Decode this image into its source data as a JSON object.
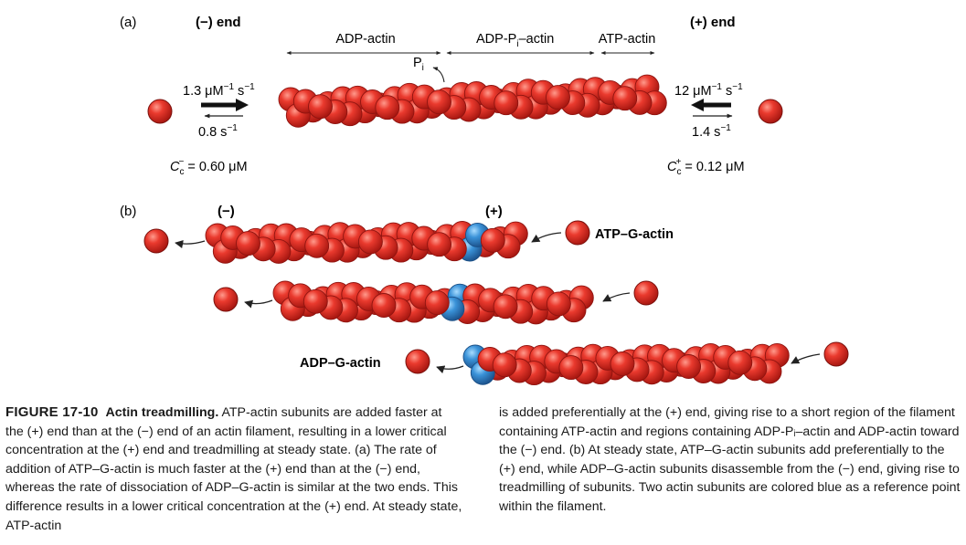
{
  "panel_a": {
    "label": "(a)",
    "minus_end": "(−) end",
    "plus_end": "(+) end",
    "region_adp": "ADP-actin",
    "region_adp_pi_main": "ADP-P",
    "region_adp_pi_sub": "i",
    "region_adp_pi_tail": "–actin",
    "region_atp": "ATP-actin",
    "pi_main": "P",
    "pi_sub": "i",
    "minus_on_rate_main": "1.3 μM",
    "minus_on_rate_exp1": "−1",
    "minus_on_rate_mid": " s",
    "minus_on_rate_exp2": "−1",
    "minus_off_rate_main": "0.8 s",
    "minus_off_rate_exp": "−1",
    "plus_on_rate_main": "12 μM",
    "plus_on_rate_exp1": "−1",
    "plus_on_rate_mid": " s",
    "plus_on_rate_exp2": "−1",
    "plus_off_rate_main": "1.4 s",
    "plus_off_rate_exp": "−1",
    "cc_minus_letter": "C",
    "cc_minus_sub": "c",
    "cc_minus_sup": "−",
    "cc_minus_value": " = 0.60 μM",
    "cc_plus_letter": "C",
    "cc_plus_sub": "c",
    "cc_plus_sup": "+",
    "cc_plus_value": " = 0.12 μM"
  },
  "panel_b": {
    "label": "(b)",
    "minus": "(−)",
    "plus": "(+)",
    "atp_g_actin": "ATP–G-actin",
    "adp_g_actin": "ADP–G-actin"
  },
  "caption": {
    "figure_label": "FIGURE 17-10",
    "title": "Actin treadmilling.",
    "left_text": "ATP-actin subunits are added faster at the (+) end than at the (−) end of an actin filament, resulting in a lower critical concentration at the (+) end and treadmilling at steady state. (a) The rate of addition of ATP–G-actin is much faster at the (+) end than at the (−) end, whereas the rate of dissociation of ADP–G-actin is similar at the two ends. This difference results in a lower critical concentration at the (+) end. At steady state, ATP-actin",
    "right_text": "is added preferentially at the (+) end, giving rise to a short region of the filament containing ATP-actin and regions containing ADP-Pᵢ–actin and ADP-actin toward the (−) end. (b) At steady state, ATP–G-actin subunits add preferentially to the (+) end, while ADP–G-actin subunits disassemble from the (−) end, giving rise to treadmilling of subunits. Two actin subunits are colored blue as a reference point within the filament."
  },
  "colors": {
    "actin_red": "#e32a22",
    "actin_red_dark": "#8f1410",
    "reference_blue": "#2f86cf",
    "reference_blue_dark": "#1a4f86"
  }
}
